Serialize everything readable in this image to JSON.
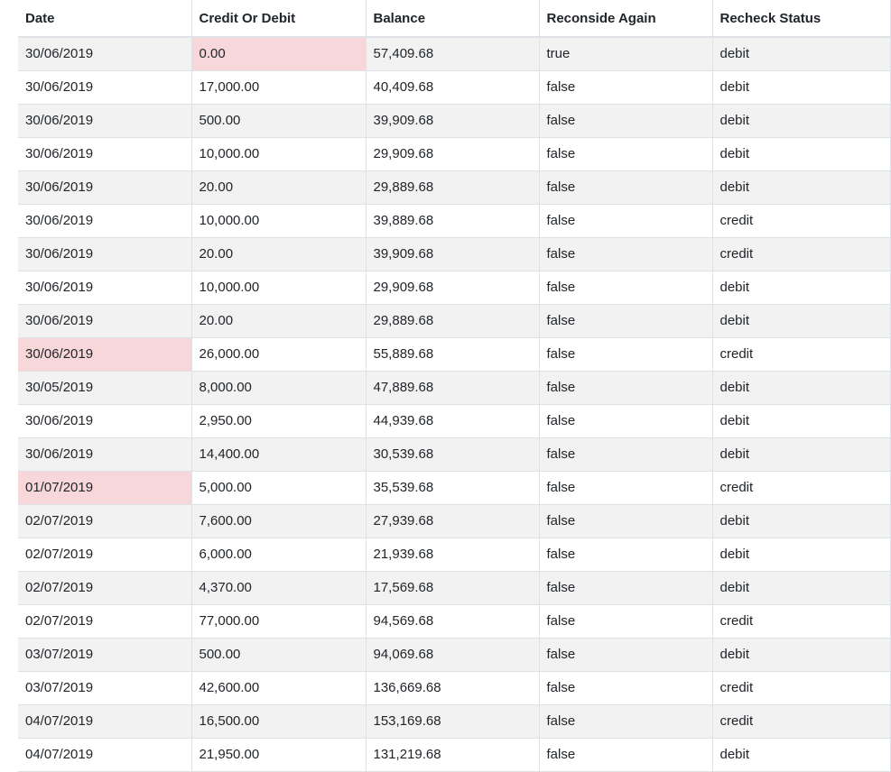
{
  "table": {
    "columns": [
      "Date",
      "Credit Or Debit",
      "Balance",
      "Reconside Again",
      "Recheck Status"
    ],
    "highlight_color": "#f8d7da",
    "rows": [
      {
        "date": "30/06/2019",
        "amount": "0.00",
        "balance": "57,409.68",
        "reconsider": "true",
        "status": "debit",
        "highlight": "amount"
      },
      {
        "date": "30/06/2019",
        "amount": "17,000.00",
        "balance": "40,409.68",
        "reconsider": "false",
        "status": "debit",
        "highlight": ""
      },
      {
        "date": "30/06/2019",
        "amount": "500.00",
        "balance": "39,909.68",
        "reconsider": "false",
        "status": "debit",
        "highlight": ""
      },
      {
        "date": "30/06/2019",
        "amount": "10,000.00",
        "balance": "29,909.68",
        "reconsider": "false",
        "status": "debit",
        "highlight": ""
      },
      {
        "date": "30/06/2019",
        "amount": "20.00",
        "balance": "29,889.68",
        "reconsider": "false",
        "status": "debit",
        "highlight": ""
      },
      {
        "date": "30/06/2019",
        "amount": "10,000.00",
        "balance": "39,889.68",
        "reconsider": "false",
        "status": "credit",
        "highlight": ""
      },
      {
        "date": "30/06/2019",
        "amount": "20.00",
        "balance": "39,909.68",
        "reconsider": "false",
        "status": "credit",
        "highlight": ""
      },
      {
        "date": "30/06/2019",
        "amount": "10,000.00",
        "balance": "29,909.68",
        "reconsider": "false",
        "status": "debit",
        "highlight": ""
      },
      {
        "date": "30/06/2019",
        "amount": "20.00",
        "balance": "29,889.68",
        "reconsider": "false",
        "status": "debit",
        "highlight": ""
      },
      {
        "date": "30/06/2019",
        "amount": "26,000.00",
        "balance": "55,889.68",
        "reconsider": "false",
        "status": "credit",
        "highlight": "date"
      },
      {
        "date": "30/05/2019",
        "amount": "8,000.00",
        "balance": "47,889.68",
        "reconsider": "false",
        "status": "debit",
        "highlight": ""
      },
      {
        "date": "30/06/2019",
        "amount": "2,950.00",
        "balance": "44,939.68",
        "reconsider": "false",
        "status": "debit",
        "highlight": ""
      },
      {
        "date": "30/06/2019",
        "amount": "14,400.00",
        "balance": "30,539.68",
        "reconsider": "false",
        "status": "debit",
        "highlight": ""
      },
      {
        "date": "01/07/2019",
        "amount": "5,000.00",
        "balance": "35,539.68",
        "reconsider": "false",
        "status": "credit",
        "highlight": "date"
      },
      {
        "date": "02/07/2019",
        "amount": "7,600.00",
        "balance": "27,939.68",
        "reconsider": "false",
        "status": "debit",
        "highlight": ""
      },
      {
        "date": "02/07/2019",
        "amount": "6,000.00",
        "balance": "21,939.68",
        "reconsider": "false",
        "status": "debit",
        "highlight": ""
      },
      {
        "date": "02/07/2019",
        "amount": "4,370.00",
        "balance": "17,569.68",
        "reconsider": "false",
        "status": "debit",
        "highlight": ""
      },
      {
        "date": "02/07/2019",
        "amount": "77,000.00",
        "balance": "94,569.68",
        "reconsider": "false",
        "status": "credit",
        "highlight": ""
      },
      {
        "date": "03/07/2019",
        "amount": "500.00",
        "balance": "94,069.68",
        "reconsider": "false",
        "status": "debit",
        "highlight": ""
      },
      {
        "date": "03/07/2019",
        "amount": "42,600.00",
        "balance": "136,669.68",
        "reconsider": "false",
        "status": "credit",
        "highlight": ""
      },
      {
        "date": "04/07/2019",
        "amount": "16,500.00",
        "balance": "153,169.68",
        "reconsider": "false",
        "status": "credit",
        "highlight": ""
      },
      {
        "date": "04/07/2019",
        "amount": "21,950.00",
        "balance": "131,219.68",
        "reconsider": "false",
        "status": "debit",
        "highlight": ""
      }
    ]
  }
}
